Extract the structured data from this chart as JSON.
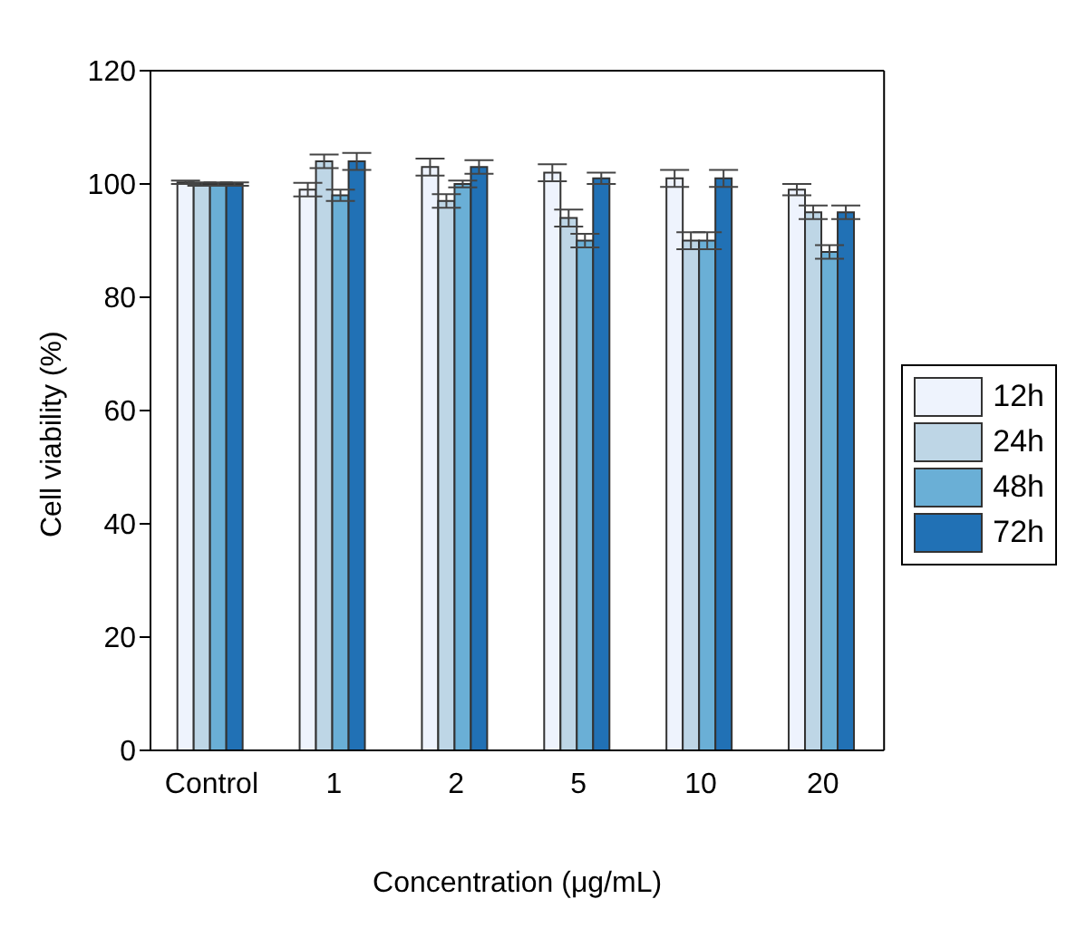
{
  "chart_data": {
    "type": "bar",
    "xlabel": "Concentration (μg/mL)",
    "ylabel": "Cell viability (%)",
    "categories": [
      "Control",
      "1",
      "2",
      "5",
      "10",
      "20"
    ],
    "series": [
      {
        "name": "12h",
        "color": "#eef3fd",
        "values": [
          100.3,
          99,
          103,
          102,
          101,
          99
        ],
        "errors": [
          0.3,
          1.2,
          1.5,
          1.5,
          1.5,
          1
        ]
      },
      {
        "name": "24h",
        "color": "#bed6e6",
        "values": [
          100,
          104,
          97,
          94,
          90,
          95
        ],
        "errors": [
          0.3,
          1.2,
          1.2,
          1.5,
          1.5,
          1.2
        ]
      },
      {
        "name": "48h",
        "color": "#6aafd6",
        "values": [
          100,
          98,
          100,
          90,
          90,
          88
        ],
        "errors": [
          0.3,
          1,
          0.6,
          1.2,
          1.5,
          1.2
        ]
      },
      {
        "name": "72h",
        "color": "#2171b5",
        "values": [
          100,
          104,
          103,
          101,
          101,
          95
        ],
        "errors": [
          0.3,
          1.5,
          1.2,
          1,
          1.5,
          1.2
        ]
      }
    ],
    "ylim": [
      0,
      120
    ],
    "yticks": [
      0,
      20,
      40,
      60,
      80,
      100,
      120
    ],
    "grid": false,
    "legend": "right"
  }
}
